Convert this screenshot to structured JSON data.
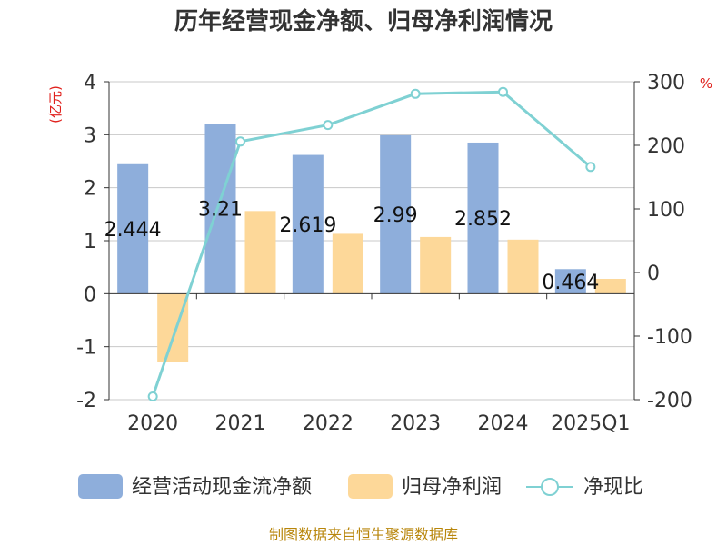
{
  "chart_data": {
    "type": "bar",
    "title": "历年经营现金净额、归母净利润情况",
    "left_unit": "(亿元)",
    "right_unit": "%",
    "categories": [
      "2020",
      "2021",
      "2022",
      "2023",
      "2024",
      "2025Q1"
    ],
    "series": [
      {
        "name": "经营活动现金流净额",
        "type": "bar",
        "axis": "left",
        "color": "#8eaedb",
        "values": [
          2.444,
          3.21,
          2.619,
          2.99,
          2.852,
          0.464
        ],
        "labels": [
          "2.444",
          "3.21",
          "2.619",
          "2.99",
          "2.852",
          "0.464"
        ]
      },
      {
        "name": "归母净利润",
        "type": "bar",
        "axis": "left",
        "color": "#fdd899",
        "values": [
          -1.28,
          1.56,
          1.13,
          1.07,
          1.02,
          0.28
        ]
      },
      {
        "name": "净现比",
        "type": "line",
        "axis": "right",
        "color": "#7fd1d3",
        "values": [
          -195,
          206,
          232,
          281,
          284,
          166
        ]
      }
    ],
    "left_axis": {
      "min": -2,
      "max": 4,
      "ticks": [
        "4",
        "3",
        "2",
        "1",
        "0",
        "-1",
        "-2"
      ]
    },
    "right_axis": {
      "min": -200,
      "max": 300,
      "ticks": [
        "300",
        "200",
        "100",
        "0",
        "-100",
        "-200"
      ]
    },
    "legend_position": "bottom",
    "source": "制图数据来自恒生聚源数据库"
  }
}
